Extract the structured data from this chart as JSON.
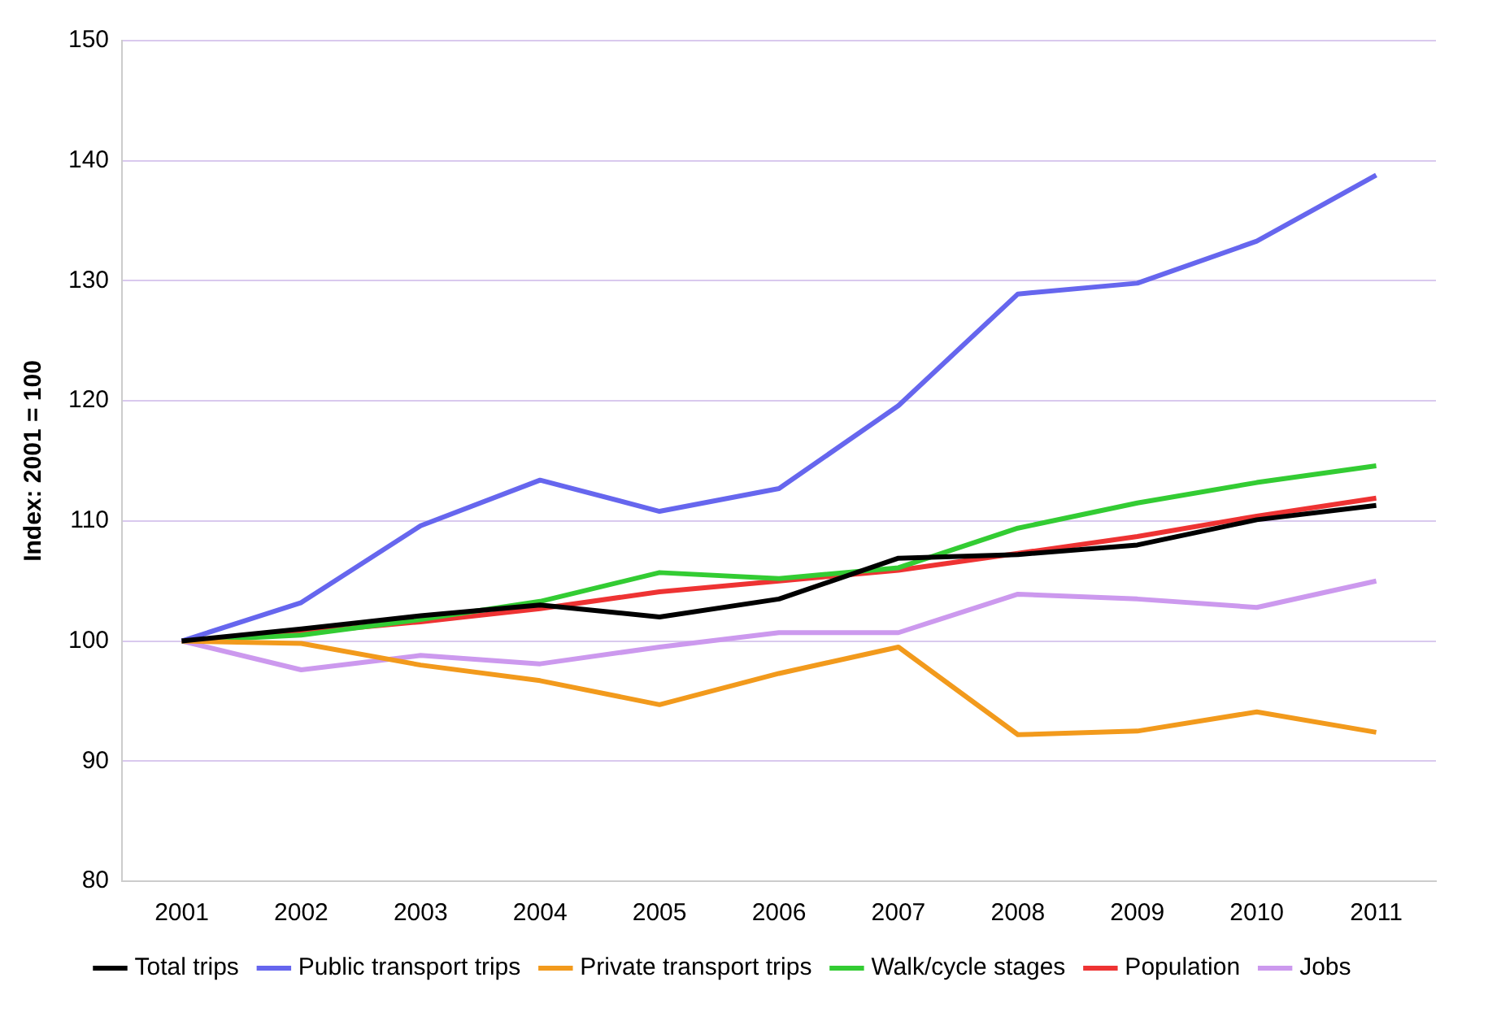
{
  "chart_data": {
    "type": "line",
    "ylabel": "Index: 2001 = 100",
    "categories": [
      "2001",
      "2002",
      "2003",
      "2004",
      "2005",
      "2006",
      "2007",
      "2008",
      "2009",
      "2010",
      "2011"
    ],
    "series": [
      {
        "name": "Total trips",
        "color": "#000000",
        "values": [
          100,
          101,
          102.1,
          103,
          102,
          103.5,
          106.9,
          107.2,
          108,
          110.1,
          111.3
        ]
      },
      {
        "name": "Public transport trips",
        "color": "#6666ee",
        "values": [
          100,
          103.2,
          109.6,
          113.4,
          110.8,
          112.7,
          119.6,
          128.9,
          129.8,
          133.3,
          138.8
        ]
      },
      {
        "name": "Private transport trips",
        "color": "#f29a1c",
        "values": [
          100,
          99.8,
          98,
          96.7,
          94.7,
          97.3,
          99.5,
          92.2,
          92.5,
          94.1,
          92.4
        ]
      },
      {
        "name": "Walk/cycle stages",
        "color": "#33cc33",
        "values": [
          100,
          100.5,
          101.8,
          103.3,
          105.7,
          105.2,
          106.1,
          109.4,
          111.5,
          113.2,
          114.6
        ]
      },
      {
        "name": "Population",
        "color": "#ee3333",
        "values": [
          100,
          100.7,
          101.6,
          102.7,
          104.1,
          105,
          105.9,
          107.3,
          108.7,
          110.4,
          111.9
        ]
      },
      {
        "name": "Jobs",
        "color": "#cc99ee",
        "values": [
          100,
          97.6,
          98.8,
          98.1,
          99.5,
          100.7,
          100.7,
          103.9,
          103.5,
          102.8,
          105
        ]
      }
    ],
    "ylim": [
      80,
      150
    ],
    "yticks": [
      80,
      90,
      100,
      110,
      120,
      130,
      140,
      150
    ],
    "grid": "y",
    "legend": "bottom",
    "marker": "none",
    "line_style": "solid"
  }
}
